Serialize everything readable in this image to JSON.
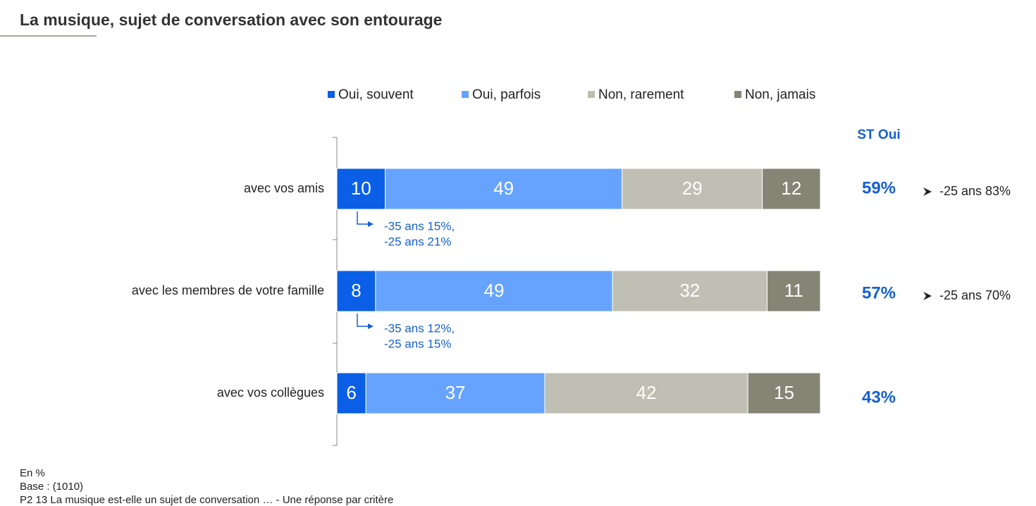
{
  "chart_data": {
    "type": "stacked_bar_horizontal",
    "title": "La musique, sujet de conversation avec son entourage",
    "categories": [
      "avec vos amis",
      "avec les membres de votre famille",
      "avec vos collègues"
    ],
    "series": [
      {
        "name": "Oui, souvent",
        "color": "#0a5fe6",
        "values": [
          10,
          8,
          6
        ]
      },
      {
        "name": "Oui, parfois",
        "color": "#66a3ff",
        "values": [
          49,
          49,
          37
        ]
      },
      {
        "name": "Non, rarement",
        "color": "#bfbfb3",
        "values": [
          29,
          32,
          42
        ]
      },
      {
        "name": "Non, jamais",
        "color": "#858576",
        "values": [
          12,
          11,
          15
        ]
      }
    ],
    "xlim": [
      0,
      100
    ],
    "st_oui": {
      "title": "ST Oui",
      "values": [
        59,
        57,
        43
      ],
      "value_labels": [
        "59%",
        "57%",
        "43%"
      ]
    },
    "annotations": [
      [
        "-35 ans 15%,",
        "-25 ans 21%"
      ],
      [
        "-35 ans 12%,",
        "-25 ans 15%"
      ]
    ],
    "side_notes": [
      "-25 ans 83%",
      "-25 ans 70%"
    ],
    "footer": [
      "En %",
      "Base : (1010)",
      "P2  13 La musique est-elle un sujet de conversation … - Une réponse par critère"
    ]
  }
}
